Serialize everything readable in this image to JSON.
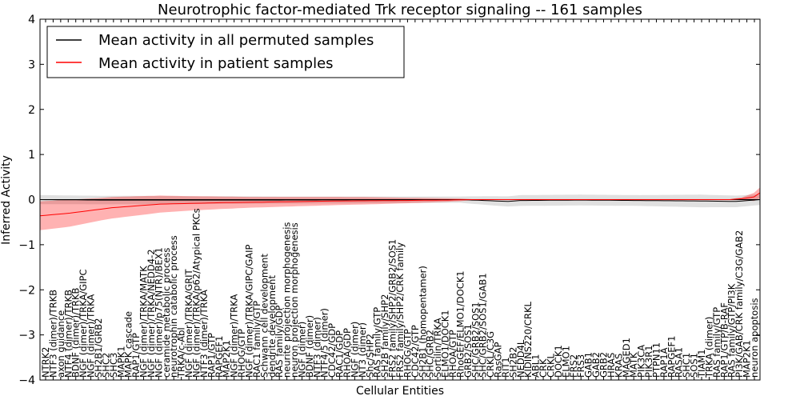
{
  "chart_data": {
    "type": "line",
    "title": "Neurotrophic factor-mediated Trk receptor signaling -- 161 samples",
    "xlabel": "Cellular Entities",
    "ylabel": "Inferred Activity",
    "ylim": [
      -4,
      4
    ],
    "yticks": [
      -4,
      -3,
      -2,
      -1,
      0,
      1,
      2,
      3,
      4
    ],
    "ytick_labels": [
      "−4",
      "−3",
      "−2",
      "−1",
      "0",
      "1",
      "2",
      "3",
      "4"
    ],
    "n_points": 121,
    "legend": {
      "position": "top-left",
      "entries": [
        {
          "label": "Mean activity in all permuted samples",
          "color": "#000000"
        },
        {
          "label": "Mean activity in patient samples",
          "color": "#ff0000"
        }
      ]
    },
    "series": [
      {
        "name": "Mean activity in all permuted samples",
        "color": "#000000",
        "band_color": "#bbbbbb",
        "anchors": [
          [
            0,
            0.0
          ],
          [
            10,
            -0.01
          ],
          [
            40,
            -0.01
          ],
          [
            70,
            0.0
          ],
          [
            76,
            -0.03
          ],
          [
            78,
            -0.04
          ],
          [
            80,
            -0.02
          ],
          [
            90,
            -0.01
          ],
          [
            110,
            -0.03
          ],
          [
            116,
            -0.04
          ],
          [
            120,
            0.0
          ]
        ],
        "band_anchors": [
          [
            0,
            0.1
          ],
          [
            40,
            0.08
          ],
          [
            70,
            0.07
          ],
          [
            75,
            0.1
          ],
          [
            80,
            0.12
          ],
          [
            100,
            0.12
          ],
          [
            110,
            0.14
          ],
          [
            120,
            0.12
          ]
        ]
      },
      {
        "name": "Mean activity in patient samples",
        "color": "#ff0000",
        "band_color": "#ff0000",
        "anchors": [
          [
            0,
            -0.36
          ],
          [
            5,
            -0.3
          ],
          [
            12,
            -0.18
          ],
          [
            20,
            -0.1
          ],
          [
            30,
            -0.07
          ],
          [
            40,
            -0.05
          ],
          [
            50,
            -0.03
          ],
          [
            60,
            -0.02
          ],
          [
            68,
            -0.01
          ],
          [
            72,
            0.0
          ],
          [
            115,
            0.0
          ],
          [
            117,
            0.02
          ],
          [
            119,
            0.06
          ],
          [
            120,
            0.15
          ]
        ],
        "band_anchors": [
          [
            0,
            0.32
          ],
          [
            5,
            0.3
          ],
          [
            10,
            0.25
          ],
          [
            15,
            0.22
          ],
          [
            25,
            0.16
          ],
          [
            35,
            0.12
          ],
          [
            45,
            0.1
          ],
          [
            55,
            0.08
          ],
          [
            65,
            0.05
          ],
          [
            70,
            0.03
          ],
          [
            72,
            0.01
          ],
          [
            115,
            0.01
          ],
          [
            117,
            0.03
          ],
          [
            120,
            0.12
          ]
        ]
      }
    ],
    "entity_labels": [
      "NTRK2",
      "NTF3 (dimer)/TRKB",
      "axon guidance",
      "NTF4 (dimer)/TRKB",
      "BDNF (dimer)/TRKB",
      "NGF (dimer)/TRKA/GIPC",
      "NGF (dimer)/TRKA",
      "SH2B1/GRB2",
      "SHC2",
      "SHC3",
      "MAPK1",
      "MAPK cascade",
      "RAP1/GTP",
      "NGF (dimer)/TRKA/MATK",
      "NGF (dimer)/TRKA/NEDD4-2",
      "NGF (dimer)/p75(NTR)/BEX1",
      "ceramide metabolic process",
      "neurotrophin catabolic process",
      "TRKA/c-Abl",
      "NGF (dimer)/TRKA/GRIT",
      "NGF (dimer)/TRKA/p62/Atypical PKCs",
      "NTF3 (dimer)/TRKA",
      "RAP1/GTP",
      "RAPGEF1",
      "MAP2K1",
      "NGF (dimer)/TRKA",
      "RHOG/GTP",
      "NGF (dimer)/TRKA/GIPC/GAIP",
      "RAC1 family/GTP",
      "Schwann cell development",
      "dendrite development",
      "RAS family/GDP",
      "neurite projection morphogenesis",
      "neuron projection morphogenesis",
      "NGF (dimer)",
      "BDNF (dimer)",
      "NTF3 (dimer)",
      "NTF4/5 (dimer)",
      "CDC42/GDP",
      "RAC1/GDP",
      "RHOA/GDP",
      "NGF (dimer)",
      "NT3 (dimer)",
      "Shc/SHP2",
      "RAS family/GTP",
      "SH2B family/SHP2",
      "FRS2 family/SHP2/GRB2/SOS1",
      "FRS2 family/SHP2/CRK family",
      "RHOG/GTP",
      "CDC42/GTP",
      "SH2B1 (homopentamer)",
      "SHC/GRB2",
      "Sortilin/TRKA",
      "ELMO1/DOCK1",
      "RHOA/GTP",
      "RhoGEF/ELMO1/DOCK1",
      "GRB2/SOS1",
      "SHC/GRB2/SOS1",
      "SHC/GRB2/SOS1/GAB1",
      "CRKL/C3G",
      "RasGAP",
      "RIT1",
      "SH2B2",
      "NEDD4L",
      "KIDINS220/CRKL",
      "ABL1",
      "CRK",
      "CRKL",
      "DOCK1",
      "ELMO1",
      "FRS2",
      "FRS3",
      "GAB1",
      "GAB2",
      "GRB2",
      "HRAS",
      "KRAS",
      "MAGED1",
      "MATK",
      "PIK3CA",
      "PIK3R1",
      "PTPN11",
      "RAP1A",
      "RAPGEF1",
      "RASA1",
      "SHC1",
      "SOS1",
      "TIAM1",
      "TRKA (dimer)",
      "RAS family/GTP",
      "RAP1/GTP/B-RAF",
      "RAS family/GTP/PI3K",
      "PI3K/GAB/CRK family/C3G/GAB2",
      "MAP2K1",
      "neuron apoptosis"
    ]
  }
}
